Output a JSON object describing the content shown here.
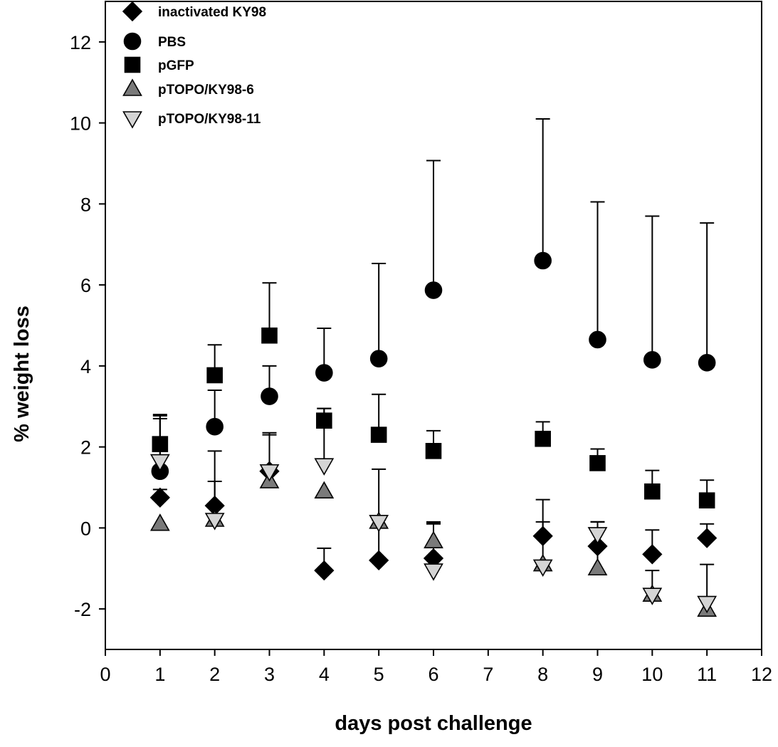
{
  "chart_data": {
    "type": "scatter",
    "xlabel": "days post challenge",
    "ylabel": "% weight loss",
    "xlim": [
      0,
      12
    ],
    "ylim": [
      -3,
      13
    ],
    "xticks": [
      0,
      1,
      2,
      3,
      4,
      5,
      6,
      7,
      8,
      9,
      10,
      11,
      12
    ],
    "x_tick_labels": [
      "0",
      "1",
      "2",
      "3",
      "4",
      "5",
      "6",
      "7",
      "8",
      "9",
      "10",
      "11",
      "12"
    ],
    "yticks": [
      -2,
      0,
      2,
      4,
      6,
      8,
      10,
      12
    ],
    "y_tick_labels": [
      "-2",
      "0",
      "2",
      "4",
      "6",
      "8",
      "10",
      "12"
    ],
    "grid": false,
    "legend_position": "top-left",
    "series": [
      {
        "name": "inactivated KY98",
        "marker": "diamond",
        "fill": "#000000",
        "points": [
          {
            "x": 1,
            "y": 0.75,
            "err": 0.2
          },
          {
            "x": 2,
            "y": 0.55,
            "err": 0.6
          },
          {
            "x": 3,
            "y": 1.4,
            "err": 0.95
          },
          {
            "x": 4,
            "y": -1.05,
            "err": 0.55
          },
          {
            "x": 5,
            "y": -0.8,
            "err": 1.0
          },
          {
            "x": 6,
            "y": -0.75,
            "err": 0.85
          },
          {
            "x": 8,
            "y": -0.2,
            "err": 0.9
          },
          {
            "x": 9,
            "y": -0.45,
            "err": 0.6
          },
          {
            "x": 10,
            "y": -0.65,
            "err": 0.6
          },
          {
            "x": 11,
            "y": -0.25,
            "err": 0.35
          }
        ]
      },
      {
        "name": "PBS",
        "marker": "circle",
        "fill": "#000000",
        "points": [
          {
            "x": 1,
            "y": 1.4,
            "err": 1.3
          },
          {
            "x": 2,
            "y": 2.5,
            "err": 0.9
          },
          {
            "x": 3,
            "y": 3.25,
            "err": 0.75
          },
          {
            "x": 4,
            "y": 3.83,
            "err": 1.1
          },
          {
            "x": 5,
            "y": 4.18,
            "err": 2.35
          },
          {
            "x": 6,
            "y": 5.87,
            "err": 3.2
          },
          {
            "x": 8,
            "y": 6.6,
            "err": 3.5
          },
          {
            "x": 9,
            "y": 4.65,
            "err": 3.4
          },
          {
            "x": 10,
            "y": 4.15,
            "err": 3.55
          },
          {
            "x": 11,
            "y": 4.08,
            "err": 3.45
          }
        ]
      },
      {
        "name": "pGFP",
        "marker": "square",
        "fill": "#000000",
        "points": [
          {
            "x": 1,
            "y": 2.07,
            "err": 0.7
          },
          {
            "x": 2,
            "y": 3.77,
            "err": 0.75
          },
          {
            "x": 3,
            "y": 4.75,
            "err": 1.3
          },
          {
            "x": 4,
            "y": 2.65,
            "err": 0.3
          },
          {
            "x": 5,
            "y": 2.3,
            "err": 1.0
          },
          {
            "x": 6,
            "y": 1.9,
            "err": 0.5
          },
          {
            "x": 8,
            "y": 2.2,
            "err": 0.42
          },
          {
            "x": 9,
            "y": 1.6,
            "err": 0.35
          },
          {
            "x": 10,
            "y": 0.9,
            "err": 0.52
          },
          {
            "x": 11,
            "y": 0.68,
            "err": 0.5
          }
        ]
      },
      {
        "name": "pTOPO/KY98-6",
        "marker": "triangle-up",
        "fill": "#7a7a7a",
        "points": [
          {
            "x": 1,
            "y": 0.1,
            "err": 0
          },
          {
            "x": 2,
            "y": 0.2,
            "err": 0
          },
          {
            "x": 3,
            "y": 1.15,
            "err": 1.15
          },
          {
            "x": 4,
            "y": 0.9,
            "err": 0
          },
          {
            "x": 5,
            "y": 0.15,
            "err": 0
          },
          {
            "x": 6,
            "y": -0.33,
            "err": 0.45
          },
          {
            "x": 8,
            "y": -0.9,
            "err": 0
          },
          {
            "x": 9,
            "y": -1.0,
            "err": 1.15
          },
          {
            "x": 10,
            "y": -1.65,
            "err": 0
          },
          {
            "x": 11,
            "y": -2.02,
            "err": 0
          }
        ]
      },
      {
        "name": "pTOPO/KY98-11",
        "marker": "triangle-down",
        "fill": "#d4d4d4",
        "points": [
          {
            "x": 1,
            "y": 1.65,
            "err": 1.15
          },
          {
            "x": 2,
            "y": 0.2,
            "err": 1.7
          },
          {
            "x": 3,
            "y": 1.4,
            "err": 0
          },
          {
            "x": 4,
            "y": 1.55,
            "err": 1.4
          },
          {
            "x": 5,
            "y": 0.15,
            "err": 1.3
          },
          {
            "x": 6,
            "y": -1.05,
            "err": 1.2
          },
          {
            "x": 8,
            "y": -0.95,
            "err": 1.1
          },
          {
            "x": 9,
            "y": -0.15,
            "err": 0.3
          },
          {
            "x": 10,
            "y": -1.65,
            "err": 0.6
          },
          {
            "x": 11,
            "y": -1.85,
            "err": 0.95
          }
        ]
      }
    ]
  }
}
